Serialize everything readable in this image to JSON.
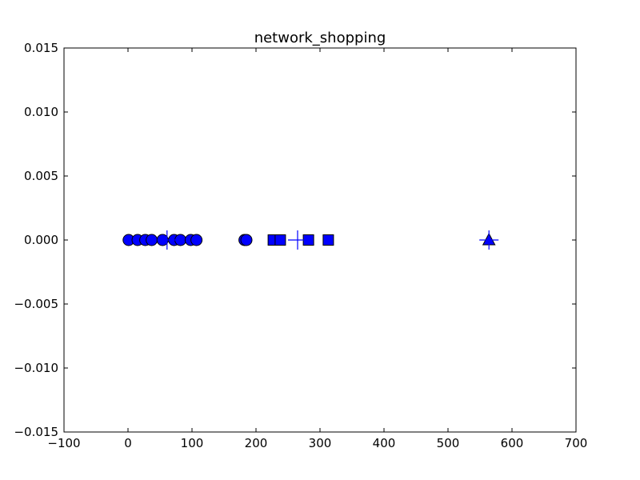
{
  "chart_data": {
    "type": "scatter",
    "title": "network_shopping",
    "xlabel": "",
    "ylabel": "",
    "xlim": [
      -100,
      700
    ],
    "ylim": [
      -0.015,
      0.015
    ],
    "grid": false,
    "xticks": [
      -100,
      0,
      100,
      200,
      300,
      400,
      500,
      600,
      700
    ],
    "xtick_labels": [
      "−100",
      "0",
      "100",
      "200",
      "300",
      "400",
      "500",
      "600",
      "700"
    ],
    "yticks": [
      -0.015,
      -0.01,
      -0.005,
      0.0,
      0.005,
      0.01,
      0.015
    ],
    "ytick_labels": [
      "−0.015",
      "−0.010",
      "−0.005",
      "0.000",
      "0.005",
      "0.010",
      "0.015"
    ],
    "marker_color": "#0000ff",
    "series": [
      {
        "marker": "circle",
        "points": [
          [
            1,
            0.0
          ],
          [
            15,
            0.0
          ],
          [
            27,
            0.0
          ],
          [
            37,
            0.0
          ],
          [
            54,
            0.0
          ],
          [
            72,
            0.0
          ],
          [
            82,
            0.0
          ],
          [
            98,
            0.0
          ],
          [
            107,
            0.0
          ],
          [
            182,
            0.0
          ],
          [
            185,
            0.0
          ]
        ]
      },
      {
        "marker": "square",
        "points": [
          [
            227,
            0.0
          ],
          [
            238,
            0.0
          ],
          [
            282,
            0.0
          ],
          [
            313,
            0.0
          ]
        ]
      },
      {
        "marker": "triangle",
        "points": [
          [
            564,
            0.0
          ]
        ]
      },
      {
        "marker": "plus",
        "points": [
          [
            61,
            0.0
          ],
          [
            265,
            0.0
          ],
          [
            564,
            0.0
          ]
        ]
      }
    ]
  }
}
